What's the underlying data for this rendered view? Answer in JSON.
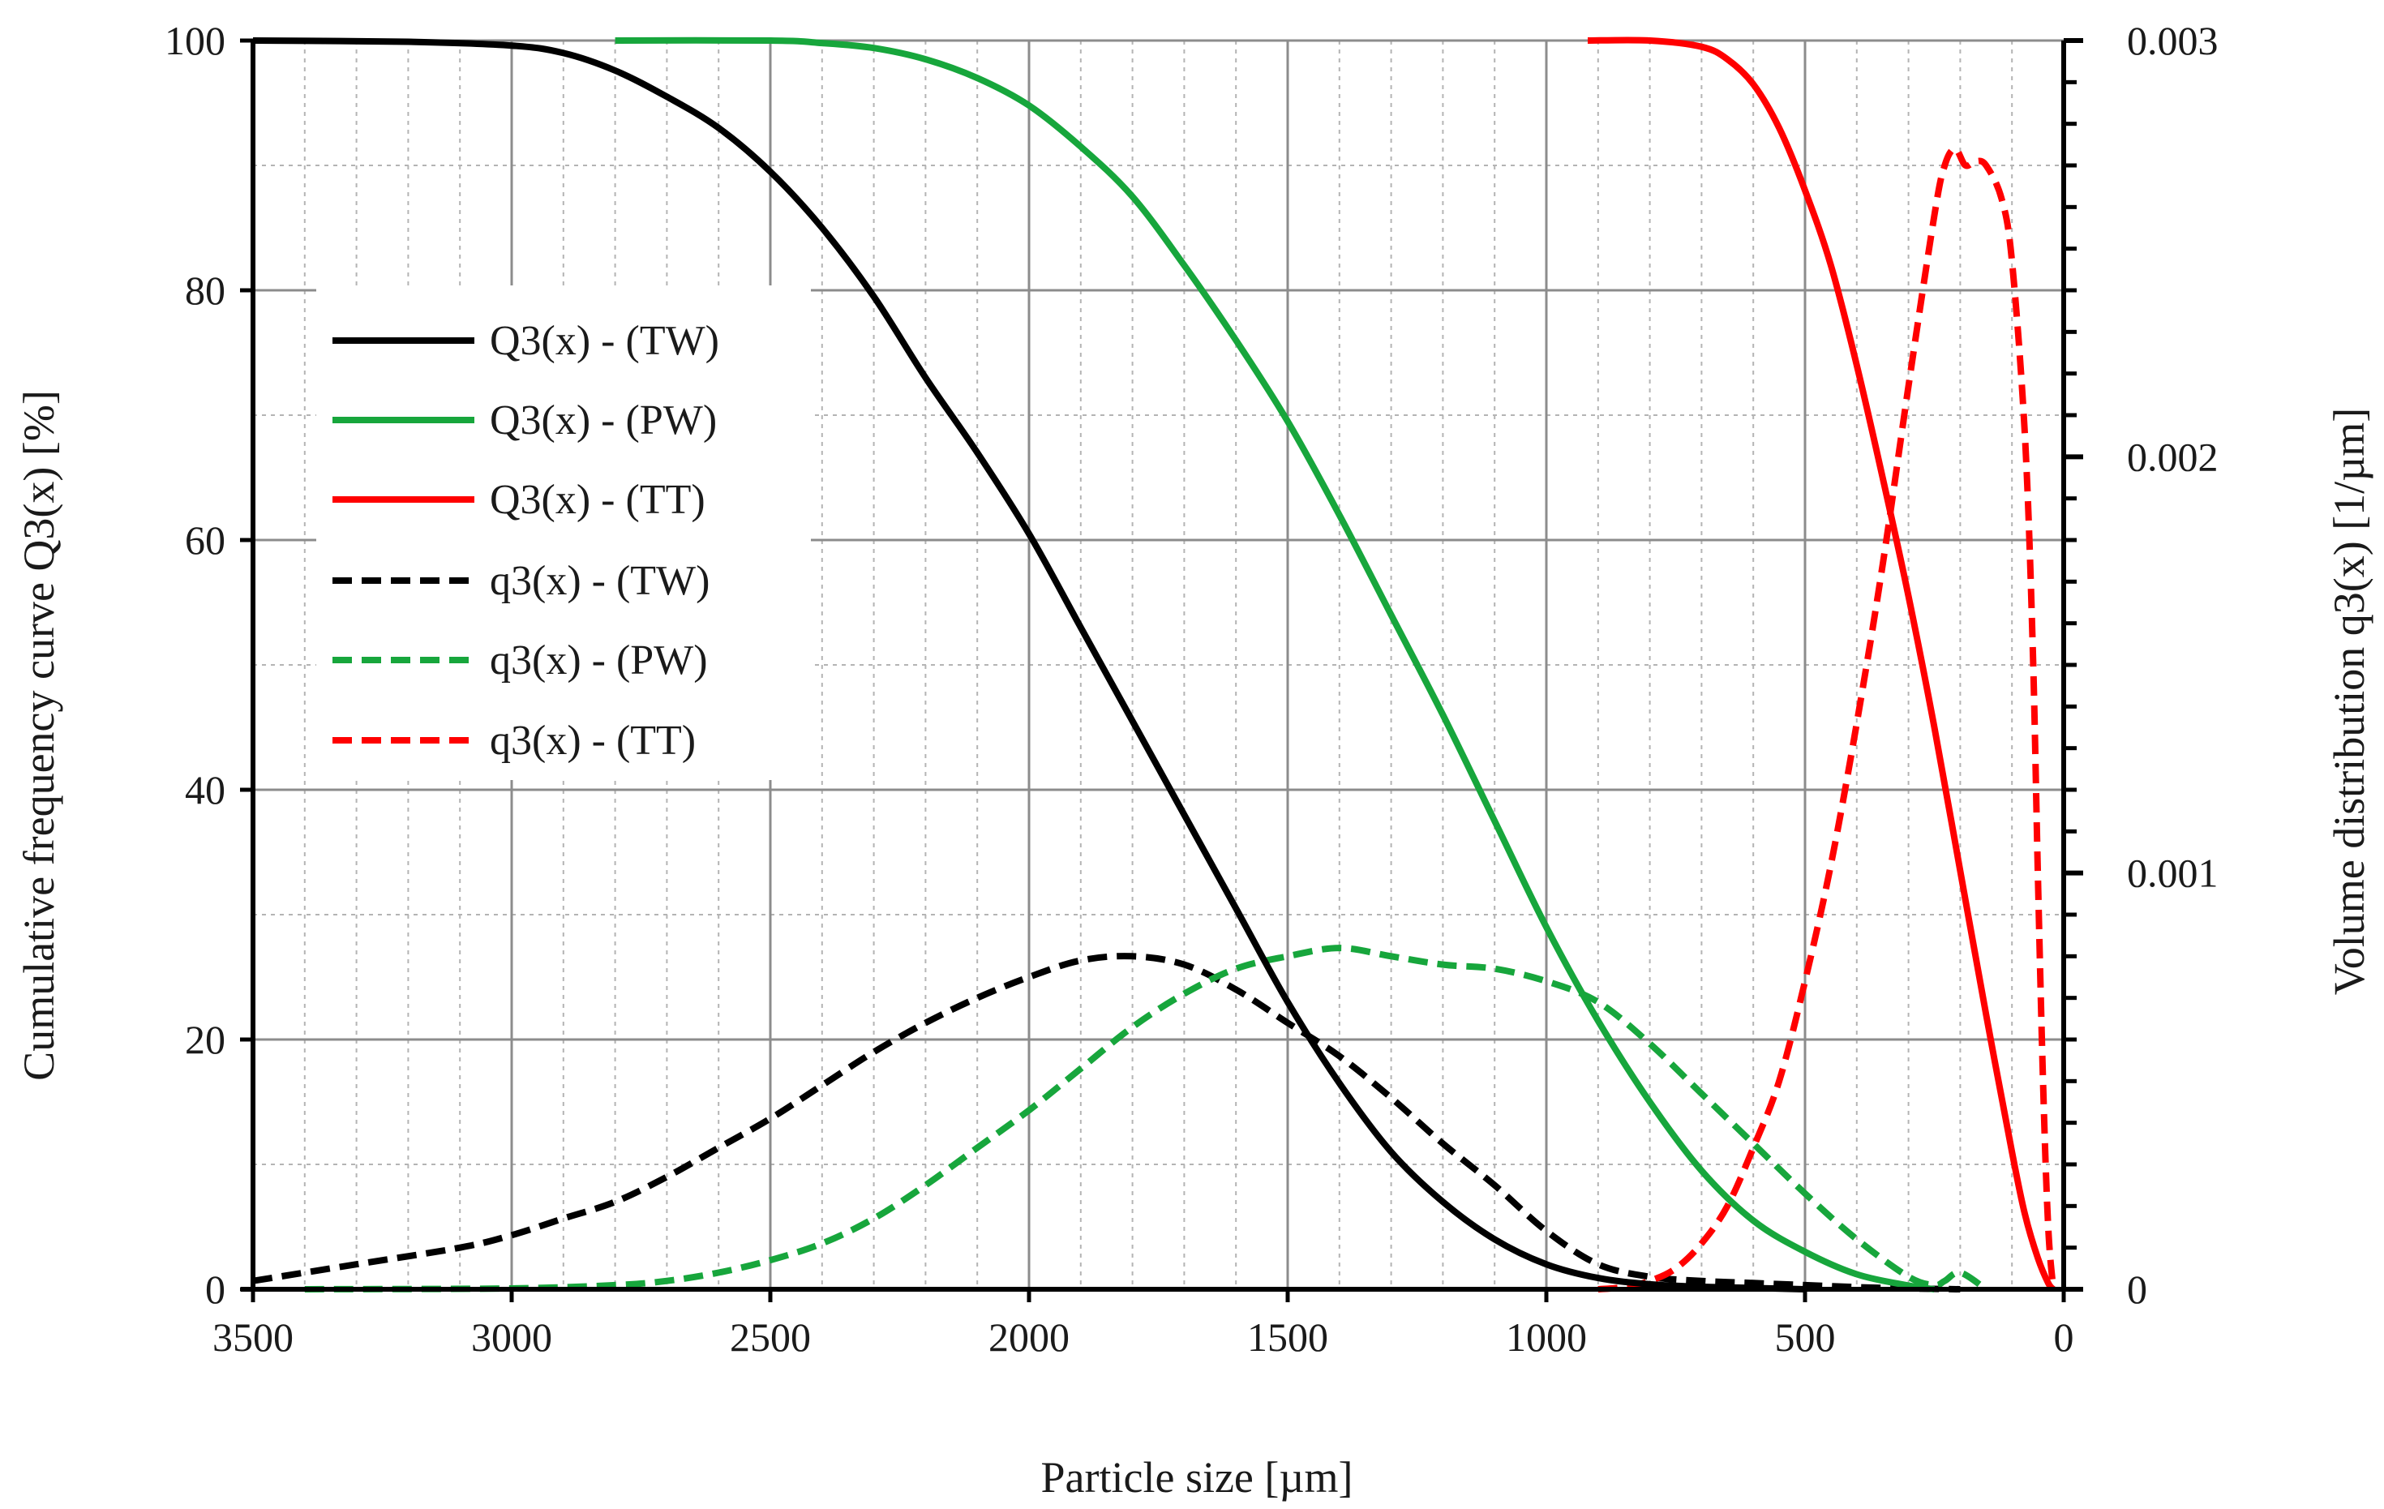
{
  "chart_data": {
    "type": "line",
    "title": "",
    "xlabel": "Particle size [µm]",
    "ylabel_left": "Cumulative frequency  curve Q3(x) [%]",
    "ylabel_right": "Volume distribution  q3(x) [1/µm]",
    "xlim": [
      3500,
      0
    ],
    "x_reversed": true,
    "ylim_left": [
      0,
      100
    ],
    "ylim_right": [
      0,
      0.003
    ],
    "x_ticks": [
      "3500",
      "3000",
      "2500",
      "2000",
      "1500",
      "1000",
      "500",
      "0"
    ],
    "y_left_ticks": [
      "0",
      "20",
      "40",
      "60",
      "80",
      "100"
    ],
    "y_right_ticks": [
      "0",
      "0.001",
      "0.002",
      "0.003"
    ],
    "grid": true,
    "legend_position": "upper-left",
    "colors": {
      "tw": "#000000",
      "pw": "#17a63c",
      "tt": "#ff0000",
      "grid_major": "#8c8c8c",
      "grid_minor": "#b4b4b4",
      "axis": "#000000"
    },
    "series": [
      {
        "name": "Q3(x) - (TW)",
        "axis": "left",
        "style": "solid",
        "color_key": "tw",
        "x": [
          3500,
          3200,
          3000,
          2900,
          2800,
          2700,
          2600,
          2500,
          2400,
          2300,
          2200,
          2100,
          2000,
          1900,
          1800,
          1700,
          1600,
          1500,
          1400,
          1300,
          1200,
          1100,
          1000,
          900,
          800,
          700,
          600,
          500
        ],
        "values": [
          100,
          99.9,
          99.6,
          99,
          97.6,
          95.5,
          93,
          89.5,
          85,
          79.5,
          73,
          67,
          60.5,
          53,
          45.5,
          38,
          30.5,
          23,
          16.5,
          11,
          7,
          4,
          2,
          0.9,
          0.4,
          0.2,
          0.1,
          0
        ]
      },
      {
        "name": "Q3(x) - (PW)",
        "axis": "left",
        "style": "solid",
        "color_key": "pw",
        "x": [
          2800,
          2500,
          2400,
          2300,
          2200,
          2100,
          2000,
          1900,
          1800,
          1700,
          1600,
          1500,
          1400,
          1300,
          1200,
          1100,
          1000,
          900,
          800,
          700,
          600,
          500,
          400,
          300,
          250
        ],
        "values": [
          100,
          100,
          99.8,
          99.4,
          98.5,
          97,
          94.8,
          91.5,
          87.5,
          82,
          76,
          69.5,
          62,
          54,
          46,
          37.5,
          29,
          21.5,
          15,
          9.5,
          5.5,
          3,
          1.2,
          0.3,
          0
        ]
      },
      {
        "name": "Q3(x) - (TT)",
        "axis": "left",
        "style": "solid",
        "color_key": "tt",
        "x": [
          920,
          800,
          700,
          650,
          600,
          550,
          500,
          450,
          400,
          350,
          300,
          250,
          200,
          150,
          100,
          75,
          50,
          30,
          20
        ],
        "values": [
          100,
          100,
          99.5,
          98.5,
          96.5,
          93,
          88,
          82,
          74,
          65,
          55.5,
          45,
          33.5,
          22,
          11,
          6,
          2.5,
          0.5,
          0
        ]
      },
      {
        "name": "q3(x) - (TW)",
        "axis": "right",
        "style": "dashed",
        "color_key": "tw",
        "x": [
          3500,
          3300,
          3100,
          3000,
          2900,
          2800,
          2700,
          2600,
          2500,
          2400,
          2300,
          2200,
          2100,
          2000,
          1900,
          1800,
          1700,
          1600,
          1500,
          1400,
          1300,
          1200,
          1100,
          1000,
          900,
          800,
          700,
          600,
          500,
          400,
          300,
          200
        ],
        "values": [
          2e-05,
          6e-05,
          0.0001,
          0.00013,
          0.00017,
          0.00021,
          0.00027,
          0.00034,
          0.00041,
          0.00049,
          0.00057,
          0.00064,
          0.0007,
          0.00075,
          0.00079,
          0.0008,
          0.00078,
          0.00072,
          0.00064,
          0.00056,
          0.00046,
          0.00035,
          0.00025,
          0.00014,
          6e-05,
          3e-05,
          2e-05,
          1.5e-05,
          1e-05,
          5e-06,
          2e-06,
          0
        ]
      },
      {
        "name": "q3(x) - (PW)",
        "axis": "right",
        "style": "dashed",
        "color_key": "pw",
        "x": [
          3400,
          3000,
          2800,
          2700,
          2600,
          2500,
          2400,
          2300,
          2200,
          2100,
          2000,
          1900,
          1800,
          1700,
          1600,
          1500,
          1400,
          1300,
          1200,
          1100,
          1000,
          900,
          800,
          700,
          600,
          500,
          400,
          300,
          250,
          230,
          200,
          150
        ],
        "values": [
          0,
          2e-06,
          1e-05,
          2e-05,
          4e-05,
          7e-05,
          0.00011,
          0.00017,
          0.00025,
          0.00034,
          0.00043,
          0.00053,
          0.00063,
          0.00071,
          0.00077,
          0.0008,
          0.00082,
          0.0008,
          0.00078,
          0.00077,
          0.00074,
          0.00069,
          0.00059,
          0.00047,
          0.00035,
          0.00023,
          0.00012,
          3e-05,
          1e-05,
          2e-05,
          4e-05,
          0
        ]
      },
      {
        "name": "q3(x) - (TT)",
        "axis": "right",
        "style": "dashed",
        "color_key": "tt",
        "x": [
          900,
          850,
          800,
          750,
          700,
          650,
          600,
          550,
          500,
          450,
          400,
          350,
          300,
          250,
          230,
          210,
          190,
          170,
          150,
          120,
          100,
          75,
          60,
          50,
          40,
          30,
          20
        ],
        "values": [
          0,
          5e-06,
          2e-05,
          5e-05,
          0.00011,
          0.0002,
          0.00034,
          0.0005,
          0.00074,
          0.00102,
          0.00136,
          0.00174,
          0.00217,
          0.00258,
          0.0027,
          0.00274,
          0.0027,
          0.00271,
          0.0027,
          0.00262,
          0.00247,
          0.00205,
          0.00155,
          0.001,
          0.0005,
          0.00015,
          0
        ]
      }
    ]
  }
}
